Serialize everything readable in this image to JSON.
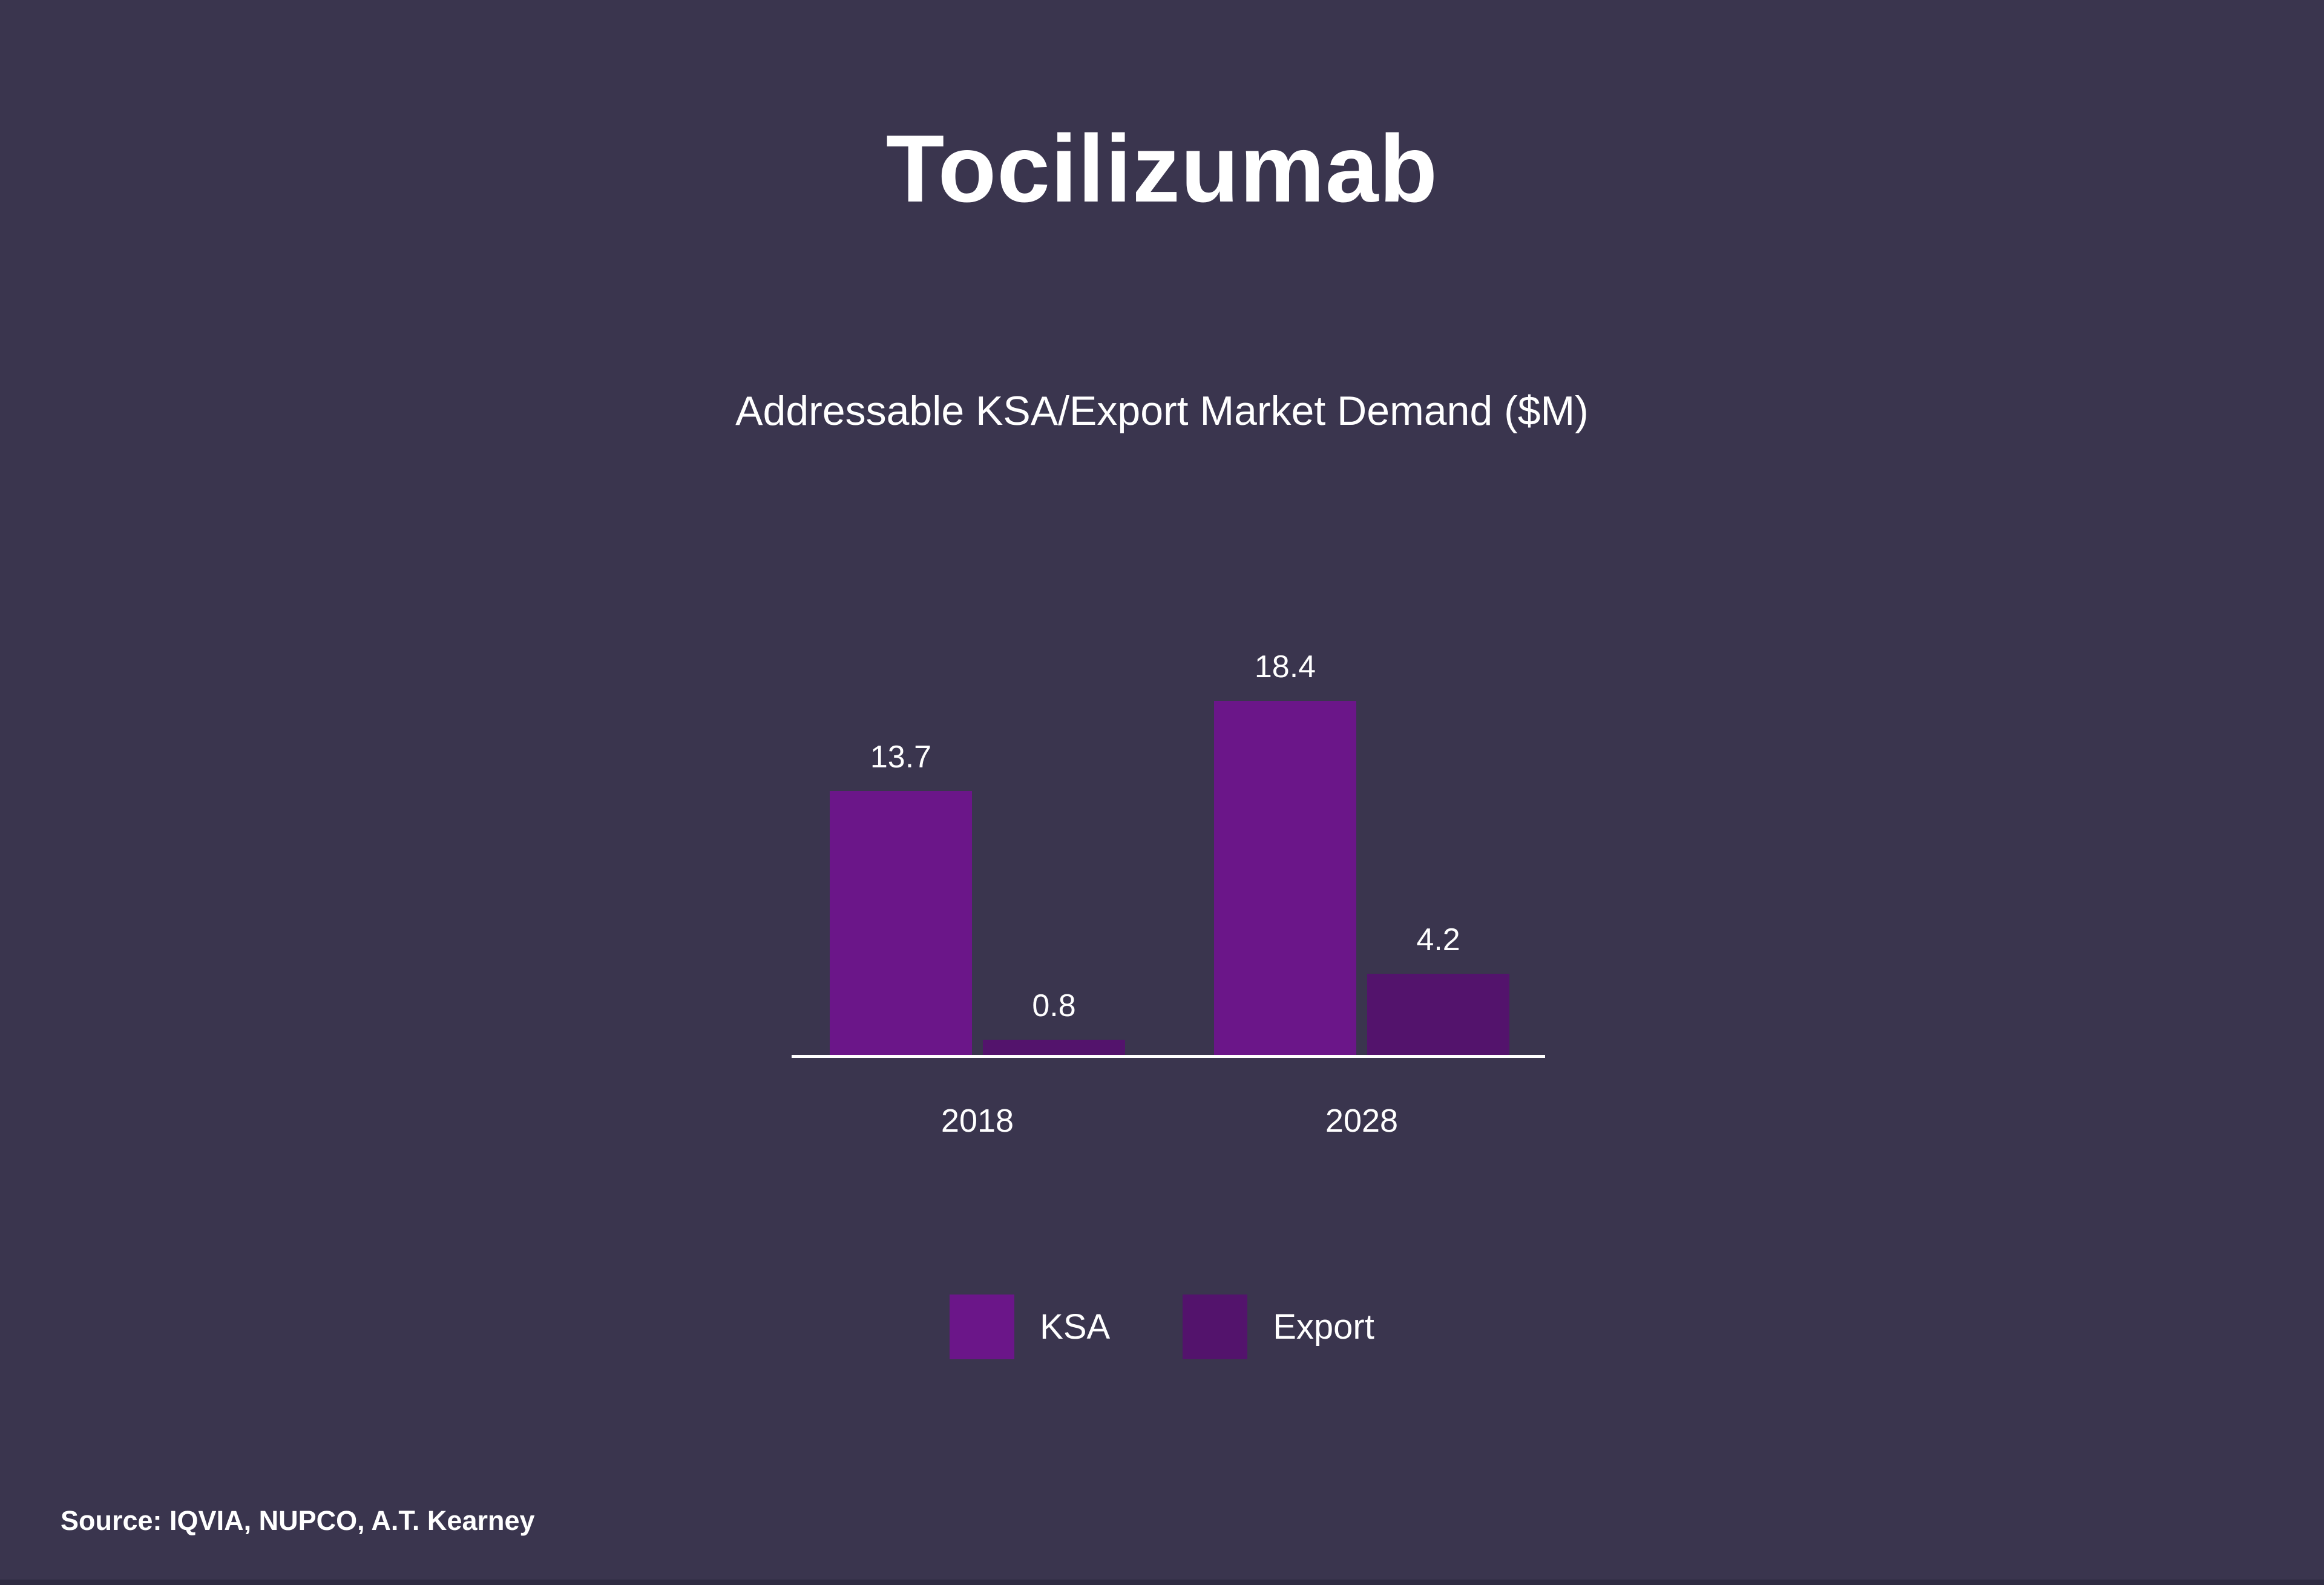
{
  "slide": {
    "title": "Tocilizumab",
    "source": "Source: IQVIA, NUPCO, A.T. Kearney"
  },
  "chart_data": {
    "type": "bar",
    "title": "Addressable KSA/Export Market Demand ($M)",
    "categories": [
      "2018",
      "2028"
    ],
    "series": [
      {
        "name": "KSA",
        "color": "#6B1689",
        "values": [
          13.7,
          18.4
        ]
      },
      {
        "name": "Export",
        "color": "#53136C",
        "values": [
          0.8,
          4.2
        ]
      }
    ],
    "ylim": [
      0,
      20
    ],
    "grid": false,
    "y_axis_shown": false,
    "value_labels": true,
    "legend_position": "bottom"
  },
  "colors": {
    "background": "#3A354E",
    "text": "#FFFFFF",
    "axis": "#FFFFFF",
    "ksa_bar": "#6B1689",
    "export_bar": "#53136C"
  }
}
